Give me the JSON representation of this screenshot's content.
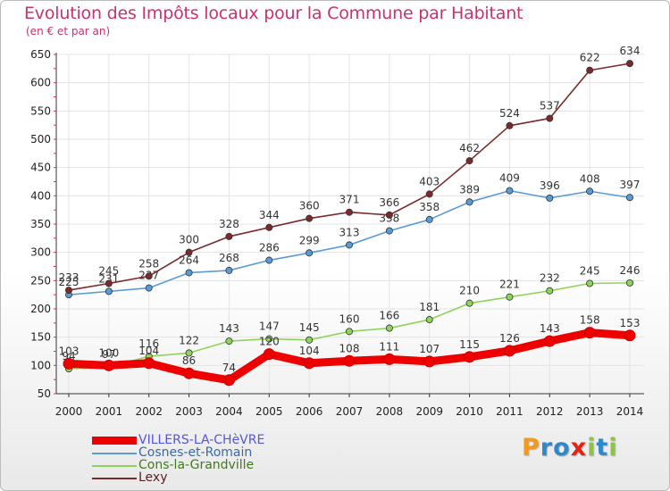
{
  "title": "Evolution des Impôts locaux pour la Commune par Habitant",
  "subtitle": "(en € et par an)",
  "logo": {
    "text": "Proxiti",
    "letters": [
      "P",
      "r",
      "o",
      "x",
      "i",
      "t",
      "i"
    ],
    "colors": [
      "#f39a1c",
      "#2f88c8",
      "#2f88c8",
      "#e2231a",
      "#8cc63f",
      "#2f88c8",
      "#8cc63f"
    ]
  },
  "chart_data": {
    "type": "line",
    "title": "Evolution des Impôts locaux pour la Commune par Habitant",
    "subtitle": "(en € et par an)",
    "xlabel": "",
    "ylabel": "",
    "categories": [
      "2000",
      "2001",
      "2002",
      "2003",
      "2004",
      "2005",
      "2006",
      "2007",
      "2008",
      "2009",
      "2010",
      "2011",
      "2012",
      "2013",
      "2014"
    ],
    "ylim": [
      50,
      650
    ],
    "yticks": [
      50,
      100,
      150,
      200,
      250,
      300,
      350,
      400,
      450,
      500,
      550,
      600,
      650
    ],
    "grid": true,
    "legend_position": "bottom-left",
    "series": [
      {
        "name": "VILLERS-LA-CHèVRE",
        "color": "#ee0000",
        "legend_color": "#5555dd",
        "thick": true,
        "values": [
          103,
          100,
          104,
          86,
          74,
          120,
          104,
          108,
          111,
          107,
          115,
          126,
          143,
          158,
          153
        ]
      },
      {
        "name": "Cosnes-et-Romain",
        "color": "#5b9bd5",
        "legend_color": "#3b6aa5",
        "thick": false,
        "values": [
          225,
          231,
          237,
          264,
          268,
          286,
          299,
          313,
          338,
          358,
          389,
          409,
          396,
          408,
          397
        ]
      },
      {
        "name": "Cons-la-Grandville",
        "color": "#8ed45c",
        "legend_color": "#3f7a1f",
        "thick": false,
        "values": [
          94,
          97,
          116,
          122,
          143,
          147,
          145,
          160,
          166,
          181,
          210,
          221,
          232,
          245,
          246
        ]
      },
      {
        "name": "Lexy",
        "color": "#7a2a2a",
        "legend_color": "#5b1f1f",
        "thick": false,
        "values": [
          233,
          245,
          258,
          300,
          328,
          344,
          360,
          371,
          366,
          403,
          462,
          524,
          537,
          622,
          634
        ]
      }
    ]
  }
}
